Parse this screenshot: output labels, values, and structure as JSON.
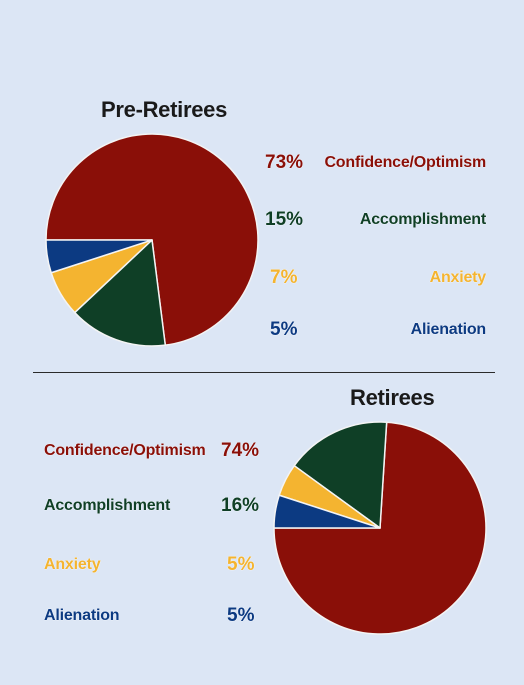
{
  "colors": {
    "confidence": "#8a0f08",
    "accomplishment": "#0f3f26",
    "anxiety": "#f4b430",
    "alienation": "#0c3a82",
    "stroke": "#f4f4f4"
  },
  "chart_data": [
    {
      "type": "pie",
      "title": "Pre-Retirees",
      "categories": [
        "Confidence/Optimism",
        "Accomplishment",
        "Anxiety",
        "Alienation"
      ],
      "values": [
        73,
        15,
        7,
        5
      ],
      "value_labels": [
        "73%",
        "15%",
        "7%",
        "5%"
      ],
      "start_angle_deg": 180,
      "direction": "clockwise",
      "legend_position": "right"
    },
    {
      "type": "pie",
      "title": "Retirees",
      "categories": [
        "Confidence/Optimism",
        "Accomplishment",
        "Anxiety",
        "Alienation"
      ],
      "values": [
        74,
        16,
        5,
        5
      ],
      "value_labels": [
        "74%",
        "16%",
        "5%",
        "5%"
      ],
      "start_angle_deg": 180,
      "direction": "counterclockwise",
      "legend_position": "left"
    }
  ]
}
